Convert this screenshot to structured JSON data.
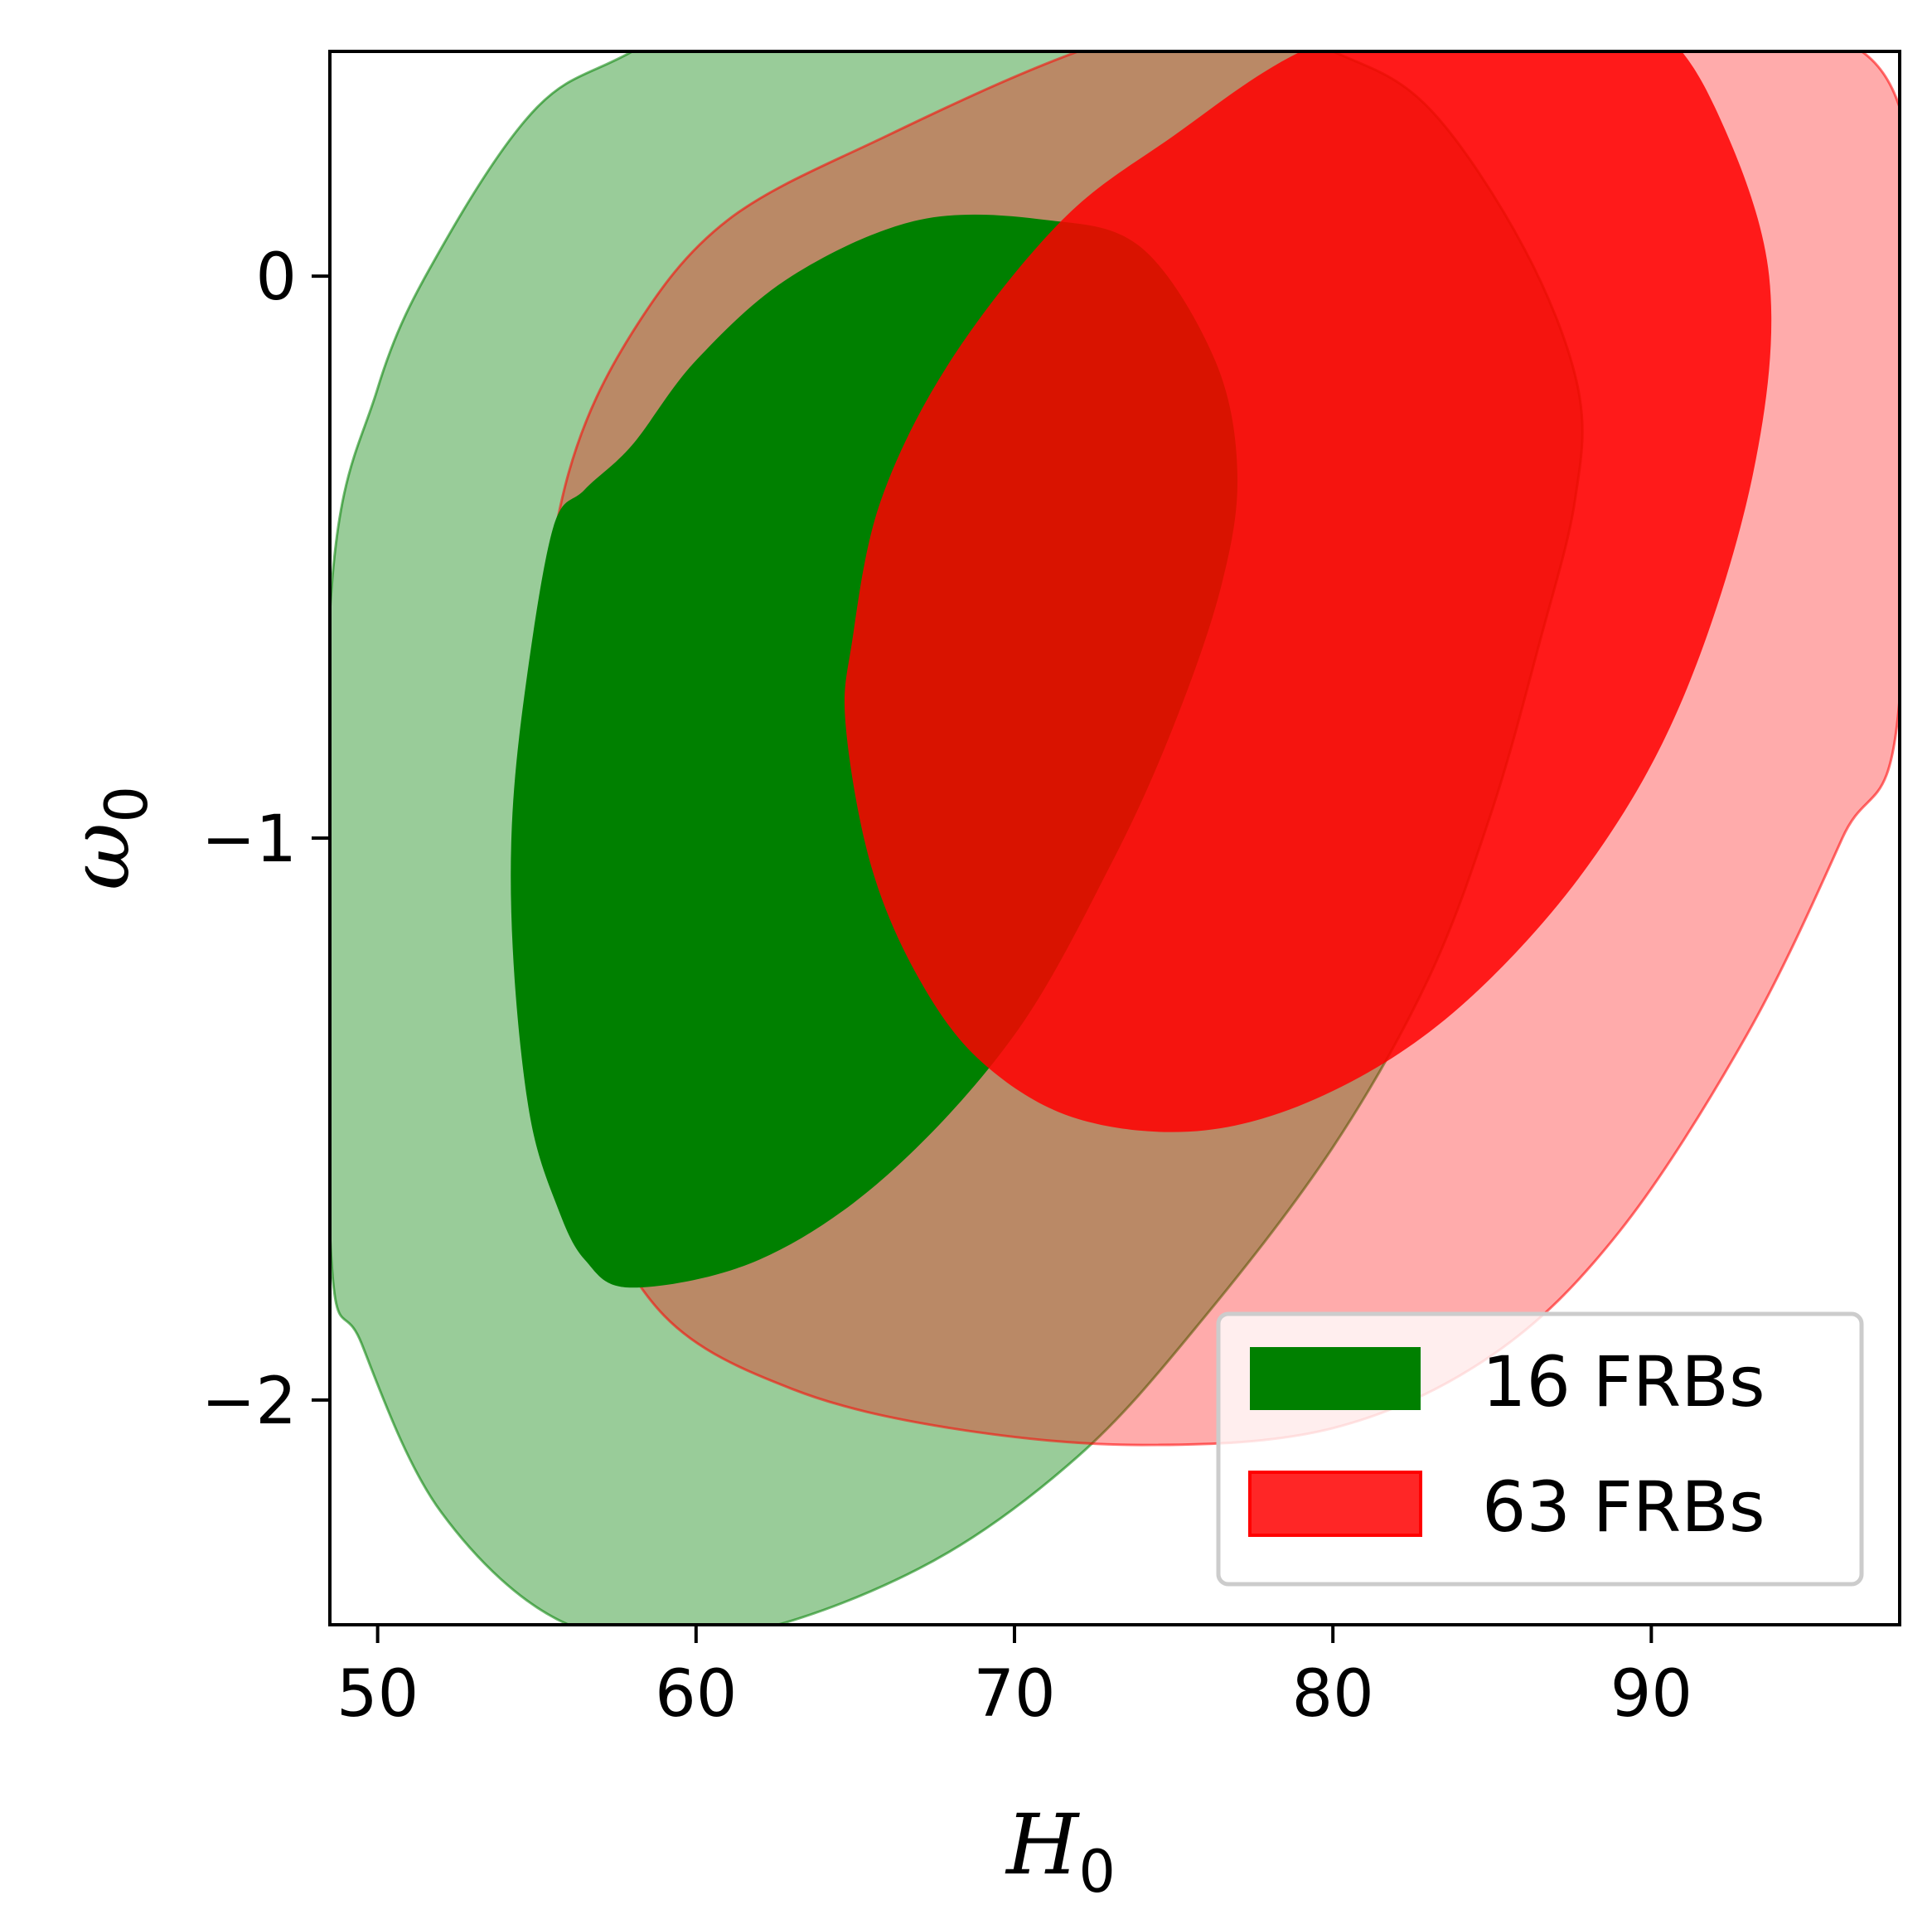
{
  "chart_data": {
    "type": "contour",
    "xlabel": "H",
    "xlabel_sub": "0",
    "ylabel": "ω",
    "ylabel_sub": "0",
    "xlim": [
      48.5,
      97.8
    ],
    "ylim": [
      -2.4,
      0.4
    ],
    "xticks": [
      {
        "value": 50,
        "label": "50"
      },
      {
        "value": 60,
        "label": "60"
      },
      {
        "value": 70,
        "label": "70"
      },
      {
        "value": 80,
        "label": "80"
      },
      {
        "value": 90,
        "label": "90"
      }
    ],
    "yticks": [
      {
        "value": 0,
        "label": "0"
      },
      {
        "value": -1,
        "label": "−1"
      },
      {
        "value": -2,
        "label": "−2"
      }
    ],
    "legend_position": "lower right",
    "series": [
      {
        "name": "16 FRBs",
        "color": "#008000",
        "contours": [
          {
            "level": "outer",
            "opacity": 0.4,
            "points": [
              [
                48.5,
                -0.6
              ],
              [
                50,
                -0.2
              ],
              [
                52,
                0.05
              ],
              [
                55,
                0.3
              ],
              [
                58,
                0.4
              ],
              [
                63,
                0.55
              ],
              [
                68,
                0.55
              ],
              [
                76,
                0.48
              ],
              [
                80,
                0.4
              ],
              [
                83,
                0.3
              ],
              [
                86,
                0.05
              ],
              [
                87.7,
                -0.2
              ],
              [
                87.6,
                -0.4
              ],
              [
                86.5,
                -0.65
              ],
              [
                85,
                -0.95
              ],
              [
                83,
                -1.25
              ],
              [
                80,
                -1.55
              ],
              [
                76,
                -1.85
              ],
              [
                72,
                -2.1
              ],
              [
                67,
                -2.3
              ],
              [
                61,
                -2.42
              ],
              [
                56,
                -2.4
              ],
              [
                52,
                -2.2
              ],
              [
                49.5,
                -1.9
              ],
              [
                48.5,
                -1.7
              ]
            ]
          },
          {
            "level": "inner",
            "opacity": 1.0,
            "points": [
              [
                55.5,
                -0.45
              ],
              [
                54.6,
                -0.75
              ],
              [
                54.2,
                -1.0
              ],
              [
                54.3,
                -1.25
              ],
              [
                54.8,
                -1.5
              ],
              [
                55.6,
                -1.65
              ],
              [
                56.5,
                -1.75
              ],
              [
                58,
                -1.8
              ],
              [
                62,
                -1.75
              ],
              [
                66,
                -1.6
              ],
              [
                70,
                -1.35
              ],
              [
                73,
                -1.05
              ],
              [
                75,
                -0.8
              ],
              [
                76.5,
                -0.55
              ],
              [
                77,
                -0.35
              ],
              [
                76.3,
                -0.15
              ],
              [
                74,
                0.05
              ],
              [
                71,
                0.1
              ],
              [
                67,
                0.1
              ],
              [
                63,
                0.0
              ],
              [
                60,
                -0.15
              ],
              [
                58,
                -0.3
              ],
              [
                56.5,
                -0.38
              ]
            ]
          }
        ]
      },
      {
        "name": "63 FRBs",
        "color": "#ff0000",
        "contours": [
          {
            "level": "outer",
            "opacity": 0.33,
            "points": [
              [
                56,
                -0.35
              ],
              [
                58,
                -0.1
              ],
              [
                61,
                0.1
              ],
              [
                66,
                0.25
              ],
              [
                72,
                0.4
              ],
              [
                78,
                0.5
              ],
              [
                85,
                0.55
              ],
              [
                91,
                0.45
              ],
              [
                97.8,
                0.3
              ],
              [
                97.8,
                -0.75
              ],
              [
                96,
                -1.0
              ],
              [
                93,
                -1.35
              ],
              [
                89,
                -1.7
              ],
              [
                85,
                -1.92
              ],
              [
                80,
                -2.05
              ],
              [
                74,
                -2.08
              ],
              [
                68,
                -2.05
              ],
              [
                63,
                -1.98
              ],
              [
                59,
                -1.85
              ],
              [
                56.5,
                -1.6
              ],
              [
                55.2,
                -1.3
              ],
              [
                54.9,
                -1.0
              ],
              [
                55,
                -0.7
              ]
            ]
          },
          {
            "level": "inner",
            "opacity": 0.85,
            "points": [
              [
                64.9,
                -0.65
              ],
              [
                65.8,
                -0.4
              ],
              [
                68,
                -0.15
              ],
              [
                71.5,
                0.1
              ],
              [
                75,
                0.25
              ],
              [
                79,
                0.4
              ],
              [
                84,
                0.5
              ],
              [
                87,
                0.5
              ],
              [
                90,
                0.45
              ],
              [
                92,
                0.3
              ],
              [
                93.7,
                0.0
              ],
              [
                93.2,
                -0.35
              ],
              [
                91,
                -0.75
              ],
              [
                88,
                -1.05
              ],
              [
                84,
                -1.3
              ],
              [
                80,
                -1.45
              ],
              [
                76,
                -1.52
              ],
              [
                72,
                -1.5
              ],
              [
                69,
                -1.4
              ],
              [
                67,
                -1.25
              ],
              [
                65.5,
                -1.05
              ],
              [
                64.7,
                -0.8
              ]
            ]
          }
        ]
      }
    ]
  }
}
